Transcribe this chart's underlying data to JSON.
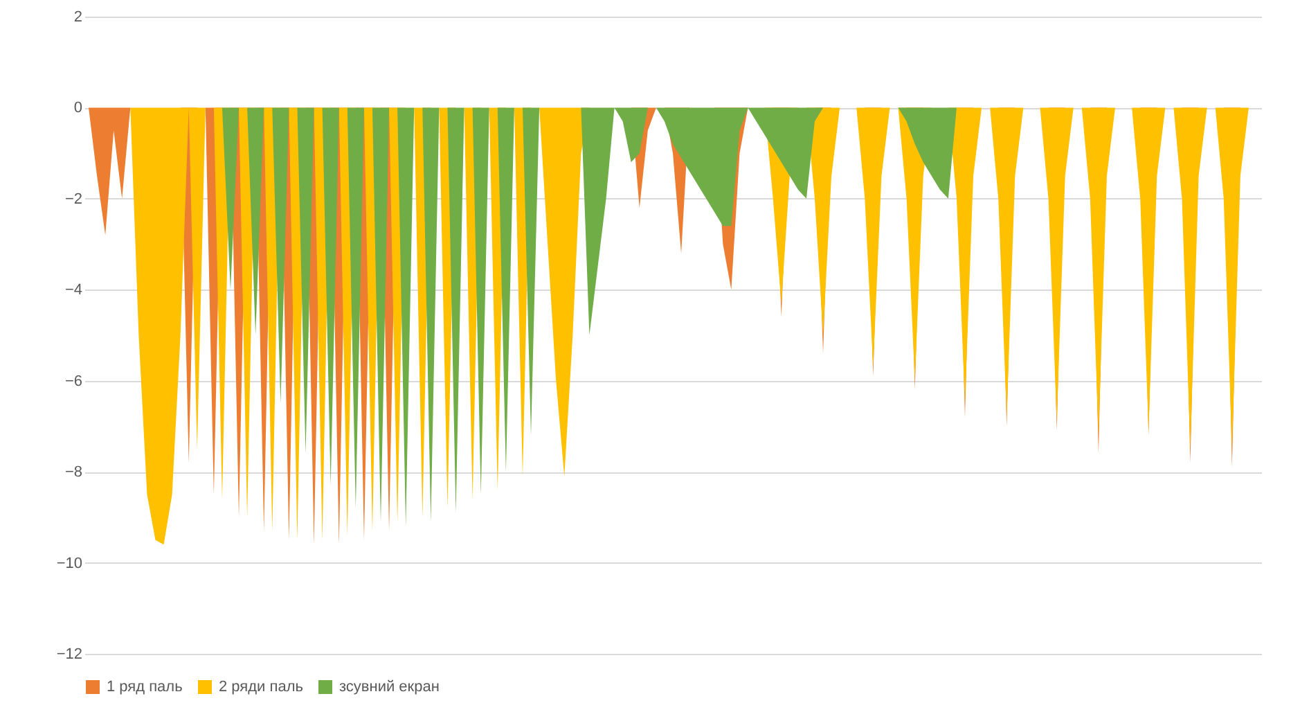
{
  "chart_data": {
    "type": "area",
    "categories": [
      null,
      null,
      null,
      null,
      null,
      null,
      null,
      null,
      null,
      null,
      null,
      null,
      null,
      null,
      null,
      null,
      null,
      null,
      null,
      null,
      null,
      null,
      null,
      null,
      null,
      null,
      null,
      null,
      null,
      null,
      null,
      null,
      null,
      null,
      null,
      null,
      null,
      null,
      null,
      null,
      null,
      null,
      null,
      null,
      null,
      null,
      null,
      null,
      null,
      null,
      null,
      null,
      null,
      null,
      null,
      null,
      null,
      null,
      null,
      null,
      null,
      null,
      null,
      null,
      null,
      null,
      null,
      null,
      null,
      null,
      null,
      null,
      null,
      null,
      null,
      null,
      null,
      null,
      null,
      null,
      null,
      null,
      null,
      null,
      null,
      null,
      null,
      null,
      null,
      null,
      null,
      null,
      null,
      null,
      null,
      null,
      null,
      null,
      null,
      null,
      null,
      null,
      null,
      null,
      null,
      null,
      null,
      null,
      null,
      null,
      null,
      null,
      null,
      null,
      null,
      null,
      null,
      null,
      null,
      null,
      null,
      null,
      null,
      null,
      null,
      null,
      null,
      null,
      null,
      null,
      null,
      null,
      null,
      null,
      null,
      null,
      null,
      null,
      null,
      null,
      null
    ],
    "series": [
      {
        "name": "1 ряд паль",
        "color": "#ed7d31",
        "values": [
          0,
          -1.5,
          -2.8,
          -0.5,
          -2.0,
          0,
          null,
          null,
          null,
          null,
          null,
          0,
          -7.8,
          0,
          0,
          -8.5,
          0,
          0,
          -9.0,
          0,
          0,
          -9.3,
          0,
          0,
          -9.5,
          0,
          0,
          -9.6,
          0,
          0,
          -9.6,
          0,
          0,
          -9.5,
          0,
          0,
          -9.3,
          0,
          null,
          null,
          null,
          null,
          null,
          null,
          null,
          null,
          null,
          null,
          null,
          null,
          null,
          null,
          null,
          null,
          null,
          null,
          null,
          null,
          null,
          null,
          null,
          null,
          null,
          null,
          null,
          0,
          -2.2,
          -0.5,
          0,
          0,
          -1,
          -3.2,
          0,
          null,
          null,
          0,
          -3.0,
          -4.0,
          -1,
          0,
          null,
          null,
          0,
          -4.6,
          0,
          null,
          null,
          0,
          -5.4,
          0,
          null,
          null,
          null,
          0,
          -5.9,
          0,
          null,
          null,
          0,
          -6.2,
          0,
          null,
          null,
          null,
          0,
          -6.8,
          0,
          null,
          null,
          0,
          -7.0,
          0,
          null,
          null,
          null,
          0,
          -7.1,
          0,
          null,
          null,
          0,
          -7.6,
          0,
          null,
          null,
          null,
          0,
          -7.2,
          0,
          null,
          null,
          0,
          -7.8,
          0,
          null,
          null,
          0,
          -7.9,
          0,
          null,
          null
        ]
      },
      {
        "name": "2 ряди паль",
        "color": "#ffc000",
        "values": [
          null,
          null,
          null,
          null,
          null,
          0,
          -5,
          -8.5,
          -9.5,
          -9.6,
          -8.5,
          -5,
          0,
          -7.5,
          0,
          0,
          -8.6,
          0,
          0,
          -9.0,
          0,
          0,
          -9.3,
          0,
          0,
          -9.5,
          0,
          0,
          -9.5,
          0,
          0,
          -9.4,
          0,
          0,
          -9.3,
          0,
          0,
          -9.1,
          0,
          0,
          -9.0,
          0,
          0,
          -8.8,
          0,
          0,
          -8.6,
          0,
          0,
          -8.4,
          0,
          0,
          -8.1,
          0,
          0,
          -3,
          -6,
          -8.1,
          -5,
          -1,
          0,
          null,
          null,
          null,
          null,
          null,
          null,
          null,
          null,
          null,
          null,
          null,
          null,
          null,
          null,
          null,
          null,
          null,
          null,
          null,
          null,
          0,
          -2,
          -4.3,
          -1.5,
          0,
          0,
          -2,
          -5.0,
          -1.5,
          0,
          null,
          0,
          -2,
          -5.7,
          -1.5,
          0,
          0,
          -2,
          -6.0,
          -1.5,
          0,
          null,
          0,
          -2,
          -6.5,
          -1.5,
          0,
          0,
          -2,
          -6.8,
          -1.5,
          0,
          null,
          0,
          -2,
          -6.9,
          -1.5,
          0,
          0,
          -2,
          -7.2,
          -1.5,
          0,
          null,
          0,
          -2,
          -7.1,
          -1.5,
          0,
          0,
          -2,
          -7.5,
          -1.5,
          0,
          0,
          -2,
          -7.5,
          -1.5,
          0,
          null
        ]
      },
      {
        "name": "зсувний екран",
        "color": "#70ad47",
        "values": [
          null,
          null,
          null,
          null,
          null,
          null,
          null,
          null,
          null,
          null,
          null,
          null,
          null,
          null,
          null,
          null,
          0,
          -4,
          0,
          0,
          -5,
          0,
          0,
          -6.5,
          0,
          0,
          -7.6,
          0,
          0,
          -8.3,
          0,
          0,
          -8.8,
          0,
          0,
          -9.1,
          0,
          0,
          -9.2,
          0,
          0,
          -9.1,
          0,
          0,
          -8.9,
          0,
          0,
          -8.5,
          0,
          0,
          -8.0,
          0,
          0,
          -7.2,
          0,
          null,
          null,
          null,
          null,
          0,
          -5.0,
          -3.5,
          -2.0,
          0,
          -0.3,
          -1.2,
          -1.0,
          0,
          0,
          -0.3,
          -0.8,
          -1.1,
          -1.4,
          -1.7,
          -2.0,
          -2.3,
          -2.6,
          -2.6,
          -0.5,
          0,
          -0.3,
          -0.6,
          -0.9,
          -1.2,
          -1.5,
          -1.8,
          -2.0,
          -0.3,
          0,
          null,
          null,
          null,
          null,
          null,
          null,
          null,
          null,
          0,
          -0.3,
          -0.8,
          -1.2,
          -1.5,
          -1.8,
          -2.0,
          0,
          null,
          null,
          null,
          null,
          null,
          null,
          null,
          null,
          null,
          null,
          null,
          null,
          null,
          null,
          null,
          null,
          null,
          null,
          null,
          null,
          null,
          null,
          null,
          null,
          null,
          null,
          null,
          null,
          null,
          null,
          null,
          null,
          null,
          null,
          null,
          null
        ]
      }
    ],
    "ylim": [
      -12,
      2
    ],
    "yticks": [
      -12,
      -10,
      -8,
      -6,
      -4,
      -2,
      0,
      2
    ],
    "grid": "y",
    "legend": "bottom",
    "tick_labels": "y"
  }
}
